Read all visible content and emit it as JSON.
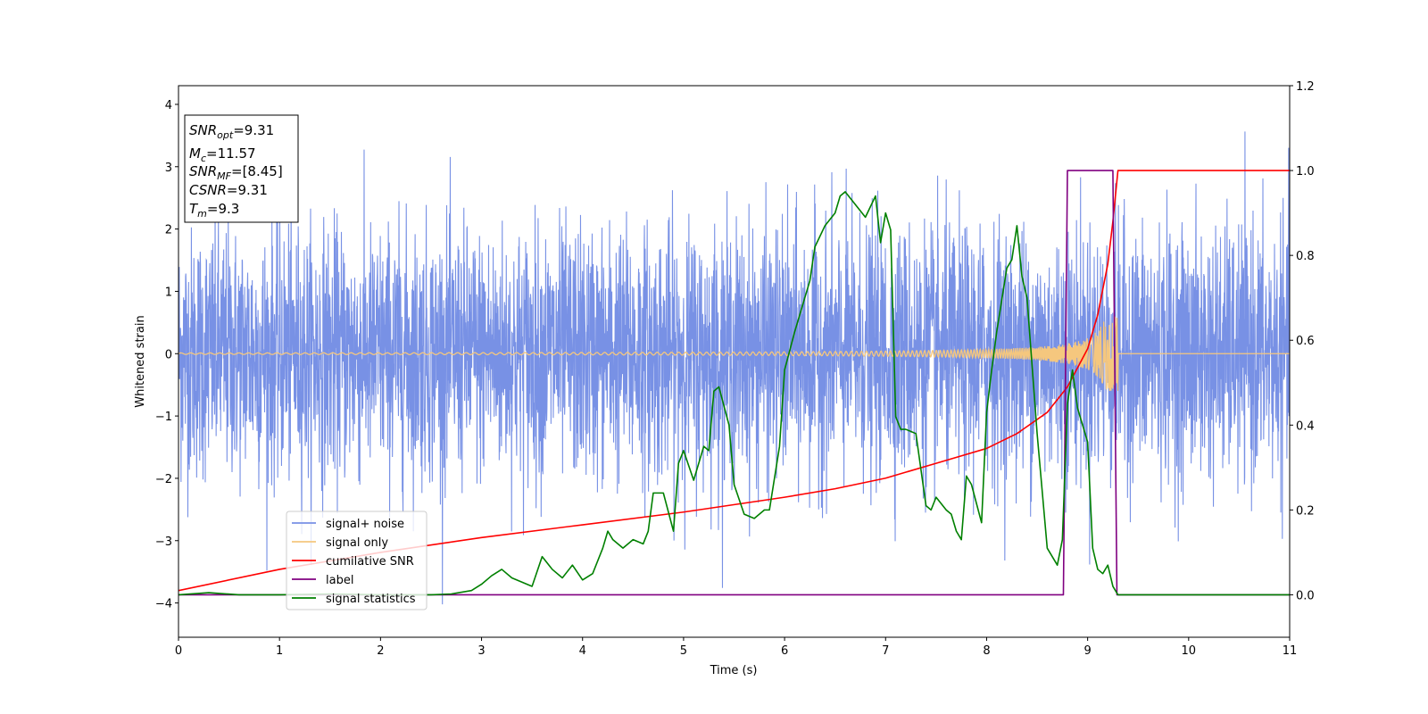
{
  "chart_data": {
    "type": "line",
    "title": "",
    "xlabel": "Time (s)",
    "ylabel": "Whitened strain",
    "xlim": [
      0,
      11
    ],
    "ylim": [
      -4.55,
      4.3
    ],
    "y2lim": [
      -0.1,
      1.2
    ],
    "x_ticks": [
      "0",
      "1",
      "2",
      "3",
      "4",
      "5",
      "6",
      "7",
      "8",
      "9",
      "10",
      "11"
    ],
    "y_ticks": [
      "−4",
      "−3",
      "−2",
      "−1",
      "0",
      "1",
      "2",
      "3",
      "4"
    ],
    "y2_ticks": [
      "0.0",
      "0.2",
      "0.4",
      "0.6",
      "0.8",
      "1.0",
      "1.2"
    ],
    "grid": false,
    "legend_position": "lower-left",
    "info_box": {
      "lines": [
        {
          "base": "SNR",
          "sub": "opt",
          "value": "=9.31"
        },
        {
          "base": "M",
          "sub": "c",
          "value": "=11.57"
        },
        {
          "base": "SNR",
          "sub": "MF",
          "value": "=[8.45]"
        },
        {
          "base": "CSNR",
          "sub": "",
          "value": "=9.31"
        },
        {
          "base": "T",
          "sub": "m",
          "value": "=9.3"
        }
      ]
    },
    "series": [
      {
        "name": "signal+ noise",
        "color": "#7891e5",
        "axis": "left",
        "kind": "noise",
        "amplitude_sigma": 1.0,
        "x_range": [
          0,
          11
        ]
      },
      {
        "name": "signal only",
        "color": "#f5c77e",
        "axis": "left",
        "kind": "chirp",
        "merger_time": 9.3,
        "peak_amplitude": 0.6,
        "x_range": [
          0,
          11
        ]
      },
      {
        "name": "cumilative SNR",
        "color": "#ff0000",
        "axis": "right",
        "x": [
          0,
          1,
          2,
          3,
          4,
          5,
          6,
          6.5,
          7,
          7.5,
          8,
          8.3,
          8.6,
          8.8,
          9.0,
          9.1,
          9.2,
          9.25,
          9.3,
          11
        ],
        "y": [
          0.01,
          0.06,
          0.1,
          0.135,
          0.165,
          0.195,
          0.23,
          0.25,
          0.275,
          0.31,
          0.345,
          0.38,
          0.43,
          0.49,
          0.58,
          0.66,
          0.78,
          0.88,
          1.0,
          1.0
        ]
      },
      {
        "name": "label",
        "color": "#800080",
        "axis": "right",
        "x": [
          0,
          8.76,
          8.8,
          9.25,
          9.29,
          11
        ],
        "y": [
          0,
          0,
          1,
          1,
          0,
          0
        ]
      },
      {
        "name": "signal statistics",
        "color": "#008000",
        "axis": "right",
        "x": [
          0,
          0.3,
          0.6,
          1.0,
          1.5,
          2.0,
          2.5,
          2.7,
          2.9,
          3.0,
          3.1,
          3.2,
          3.3,
          3.4,
          3.5,
          3.6,
          3.7,
          3.8,
          3.9,
          4.0,
          4.1,
          4.2,
          4.25,
          4.3,
          4.4,
          4.45,
          4.5,
          4.6,
          4.65,
          4.7,
          4.8,
          4.9,
          4.95,
          5.0,
          5.1,
          5.2,
          5.25,
          5.3,
          5.35,
          5.45,
          5.5,
          5.6,
          5.7,
          5.8,
          5.85,
          5.95,
          6.0,
          6.1,
          6.2,
          6.25,
          6.3,
          6.4,
          6.5,
          6.55,
          6.6,
          6.7,
          6.8,
          6.9,
          6.95,
          7.0,
          7.05,
          7.1,
          7.15,
          7.2,
          7.3,
          7.4,
          7.45,
          7.5,
          7.6,
          7.65,
          7.7,
          7.75,
          7.8,
          7.85,
          7.95,
          8.0,
          8.05,
          8.1,
          8.2,
          8.25,
          8.3,
          8.35,
          8.4,
          8.5,
          8.6,
          8.7,
          8.75,
          8.8,
          8.85,
          8.9,
          9.0,
          9.05,
          9.1,
          9.15,
          9.2,
          9.25,
          9.3,
          11
        ],
        "y": [
          0,
          0.005,
          0.0,
          0.0,
          0.002,
          0.0,
          0.0,
          0.002,
          0.01,
          0.025,
          0.045,
          0.06,
          0.04,
          0.03,
          0.02,
          0.09,
          0.06,
          0.04,
          0.07,
          0.035,
          0.05,
          0.11,
          0.15,
          0.13,
          0.11,
          0.12,
          0.13,
          0.12,
          0.15,
          0.24,
          0.24,
          0.15,
          0.31,
          0.34,
          0.27,
          0.35,
          0.34,
          0.48,
          0.49,
          0.4,
          0.26,
          0.19,
          0.18,
          0.2,
          0.2,
          0.35,
          0.53,
          0.62,
          0.7,
          0.74,
          0.82,
          0.87,
          0.9,
          0.94,
          0.95,
          0.92,
          0.89,
          0.94,
          0.83,
          0.9,
          0.86,
          0.42,
          0.39,
          0.39,
          0.38,
          0.21,
          0.2,
          0.23,
          0.2,
          0.19,
          0.15,
          0.13,
          0.28,
          0.26,
          0.17,
          0.43,
          0.53,
          0.62,
          0.77,
          0.79,
          0.87,
          0.75,
          0.7,
          0.38,
          0.11,
          0.07,
          0.13,
          0.45,
          0.53,
          0.44,
          0.36,
          0.11,
          0.06,
          0.05,
          0.07,
          0.02,
          0,
          0
        ]
      }
    ]
  }
}
